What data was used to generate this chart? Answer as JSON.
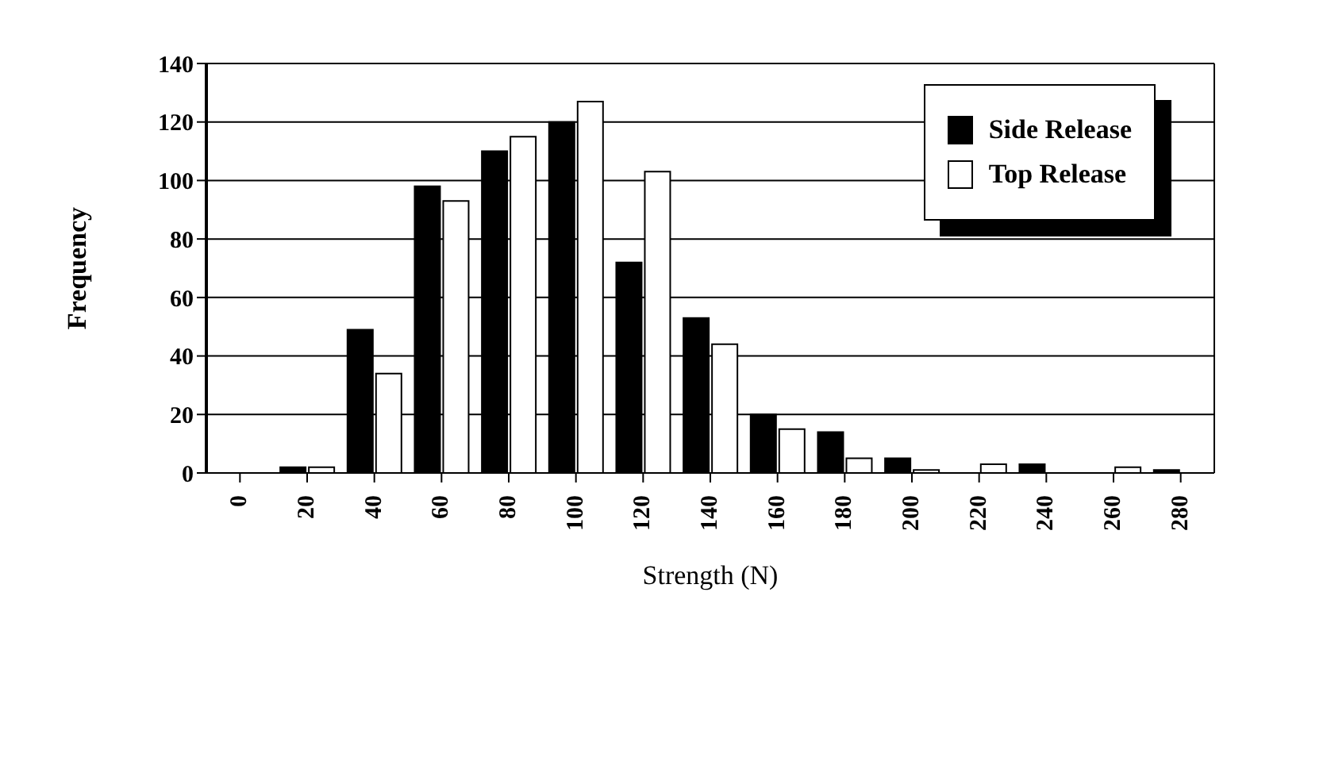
{
  "chart_data": {
    "type": "bar",
    "xlabel": "Strength (N)",
    "ylabel": "Frequency",
    "categories": [
      "0",
      "20",
      "40",
      "60",
      "80",
      "100",
      "120",
      "140",
      "160",
      "180",
      "200",
      "220",
      "240",
      "260",
      "280"
    ],
    "series": [
      {
        "name": "Side Release",
        "color": "#000000",
        "values": [
          0,
          2,
          49,
          98,
          110,
          120,
          72,
          53,
          20,
          14,
          5,
          0,
          3,
          0,
          1
        ]
      },
      {
        "name": "Top Release",
        "color": "#ffffff",
        "values": [
          0,
          2,
          34,
          93,
          115,
          127,
          103,
          44,
          15,
          5,
          1,
          3,
          0,
          2,
          0
        ]
      }
    ],
    "ylim": [
      0,
      140
    ],
    "yticks": [
      0,
      20,
      40,
      60,
      80,
      100,
      120,
      140
    ],
    "grid": "y",
    "legend": "top right"
  }
}
